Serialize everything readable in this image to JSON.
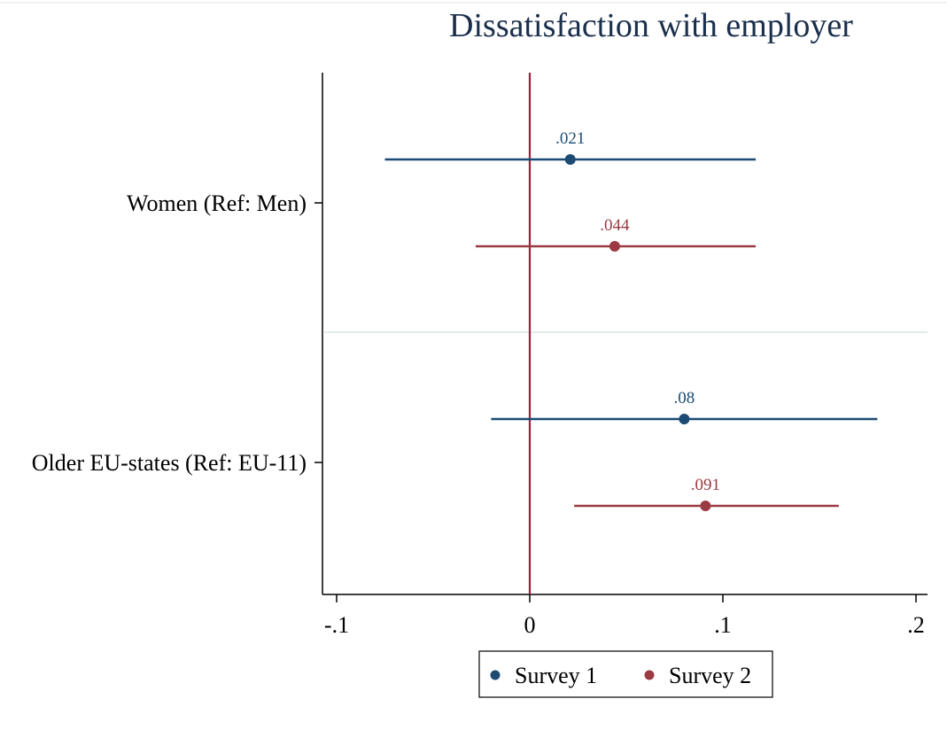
{
  "chart_data": {
    "type": "scatter",
    "subtype": "coefficient-plot",
    "orientation": "horizontal",
    "title": "Dissatisfaction with employer",
    "categories": [
      "Women (Ref: Men)",
      "Older EU-states (Ref: EU-11)"
    ],
    "x_ticks": [
      -0.1,
      0,
      0.1,
      0.2
    ],
    "x_tick_labels": [
      "-.1",
      "0",
      ".1",
      ".2"
    ],
    "xlim": [
      -0.108,
      0.205
    ],
    "reference_line": 0,
    "grid": false,
    "legend_position": "bottom",
    "series": [
      {
        "name": "Survey 1",
        "color": "#1b4a72",
        "points": [
          {
            "category": "Women (Ref: Men)",
            "estimate": 0.021,
            "ci_low": -0.075,
            "ci_high": 0.117,
            "label": ".021"
          },
          {
            "category": "Older EU-states (Ref: EU-11)",
            "estimate": 0.08,
            "ci_low": -0.02,
            "ci_high": 0.18,
            "label": ".08"
          }
        ]
      },
      {
        "name": "Survey 2",
        "color": "#9b3a43",
        "points": [
          {
            "category": "Women (Ref: Men)",
            "estimate": 0.044,
            "ci_low": -0.028,
            "ci_high": 0.117,
            "label": ".044"
          },
          {
            "category": "Older EU-states (Ref: EU-11)",
            "estimate": 0.091,
            "ci_low": 0.023,
            "ci_high": 0.16,
            "label": ".091"
          }
        ]
      }
    ]
  },
  "colors": {
    "axis": "#000000",
    "reference_line": "#a01e3c",
    "separator": "#e6eeee",
    "title": "#1a2f4c"
  }
}
